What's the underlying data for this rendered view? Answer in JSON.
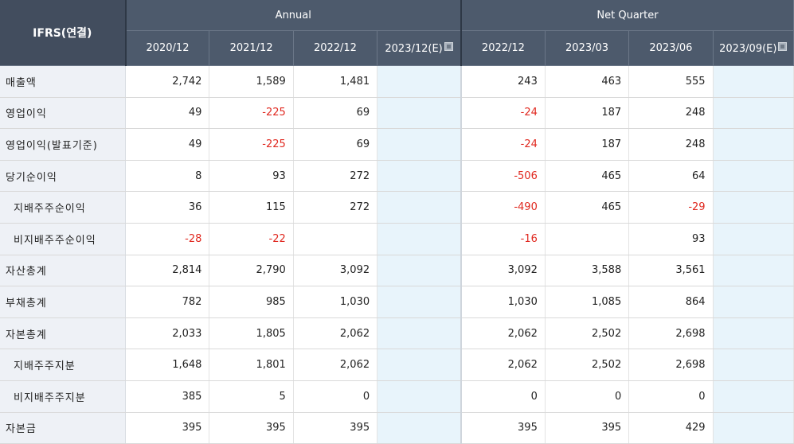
{
  "header": {
    "corner": "IFRS(연결)",
    "groups": [
      {
        "label": "Annual"
      },
      {
        "label": "Net Quarter"
      }
    ],
    "periods": [
      {
        "label": "2020/12",
        "estimate": false
      },
      {
        "label": "2021/12",
        "estimate": false
      },
      {
        "label": "2022/12",
        "estimate": false
      },
      {
        "label": "2023/12(E)",
        "estimate": true
      },
      {
        "label": "2022/12",
        "estimate": false
      },
      {
        "label": "2023/03",
        "estimate": false
      },
      {
        "label": "2023/06",
        "estimate": false
      },
      {
        "label": "2023/09(E)",
        "estimate": true
      }
    ]
  },
  "colors": {
    "header_bg": "#4d5a6c",
    "label_bg": "#eef1f6",
    "estimate_bg": "#e8f4fb",
    "negative_text": "#e0281f"
  },
  "rows": [
    {
      "label": "매출액",
      "sub": false,
      "values": [
        "2,742",
        "1,589",
        "1,481",
        "",
        "243",
        "463",
        "555",
        ""
      ]
    },
    {
      "label": "영업이익",
      "sub": false,
      "values": [
        "49",
        "-225",
        "69",
        "",
        "-24",
        "187",
        "248",
        ""
      ]
    },
    {
      "label": "영업이익(발표기준)",
      "sub": false,
      "values": [
        "49",
        "-225",
        "69",
        "",
        "-24",
        "187",
        "248",
        ""
      ]
    },
    {
      "label": "당기순이익",
      "sub": false,
      "values": [
        "8",
        "93",
        "272",
        "",
        "-506",
        "465",
        "64",
        ""
      ]
    },
    {
      "label": "지배주주순이익",
      "sub": true,
      "values": [
        "36",
        "115",
        "272",
        "",
        "-490",
        "465",
        "-29",
        ""
      ]
    },
    {
      "label": "비지배주주순이익",
      "sub": true,
      "values": [
        "-28",
        "-22",
        "",
        "",
        "-16",
        "",
        "93",
        ""
      ]
    },
    {
      "label": "자산총계",
      "sub": false,
      "values": [
        "2,814",
        "2,790",
        "3,092",
        "",
        "3,092",
        "3,588",
        "3,561",
        ""
      ]
    },
    {
      "label": "부채총계",
      "sub": false,
      "values": [
        "782",
        "985",
        "1,030",
        "",
        "1,030",
        "1,085",
        "864",
        ""
      ]
    },
    {
      "label": "자본총계",
      "sub": false,
      "values": [
        "2,033",
        "1,805",
        "2,062",
        "",
        "2,062",
        "2,502",
        "2,698",
        ""
      ]
    },
    {
      "label": "지배주주지분",
      "sub": true,
      "values": [
        "1,648",
        "1,801",
        "2,062",
        "",
        "2,062",
        "2,502",
        "2,698",
        ""
      ]
    },
    {
      "label": "비지배주주지분",
      "sub": true,
      "values": [
        "385",
        "5",
        "0",
        "",
        "0",
        "0",
        "0",
        ""
      ]
    },
    {
      "label": "자본금",
      "sub": false,
      "values": [
        "395",
        "395",
        "395",
        "",
        "395",
        "395",
        "429",
        ""
      ]
    }
  ]
}
